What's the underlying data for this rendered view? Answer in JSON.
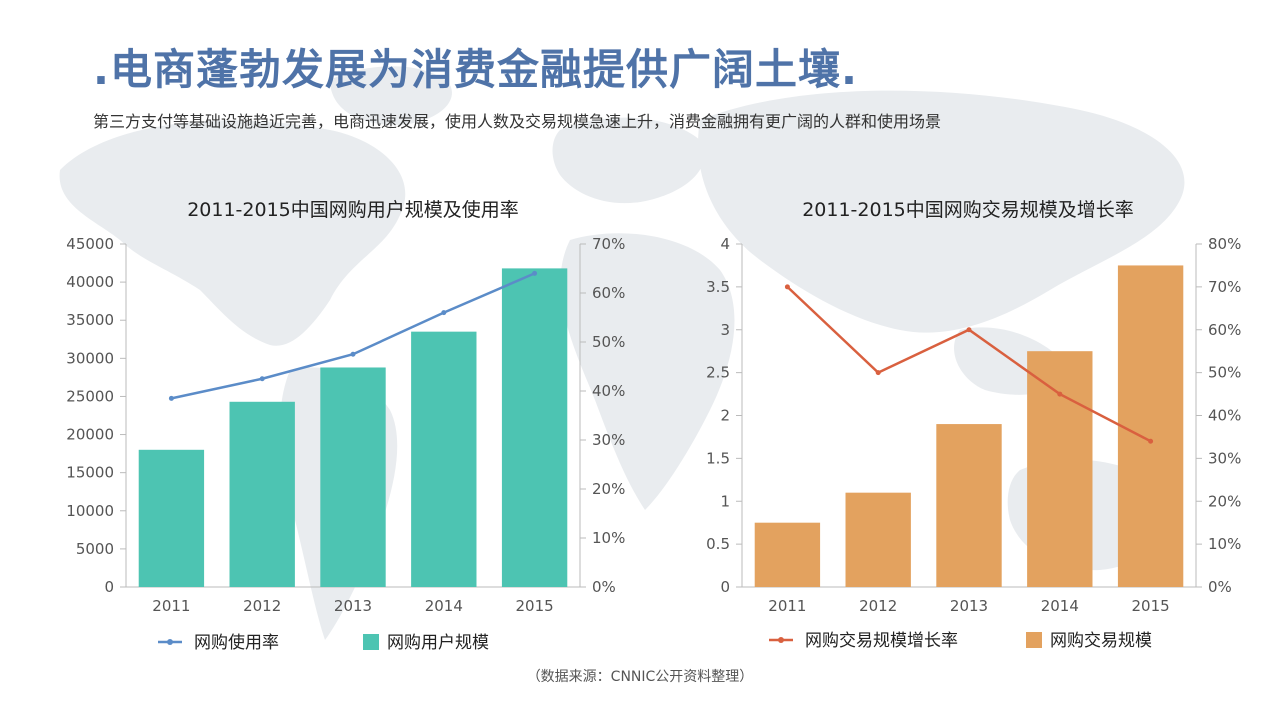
{
  "page": {
    "title": ".电商蓬勃发展为消费金融提供广阔土壤.",
    "subtitle": "第三方支付等基础设施趋近完善，电商迅速发展，使用人数及交易规模急速上升，消费金融拥有更广阔的人群和使用场景",
    "source": "（数据来源：CNNIC公开资料整理）"
  },
  "colors": {
    "title": "#4f73a8",
    "teal": "#4dc4b2",
    "blue_line": "#5b8cc8",
    "orange": "#e3a25f",
    "red_line": "#d9603f"
  },
  "chart_data": [
    {
      "type": "bar",
      "title": "2011-2015中国网购用户规模及使用率",
      "categories": [
        "2011",
        "2012",
        "2013",
        "2014",
        "2015"
      ],
      "series": [
        {
          "name": "网购用户规模",
          "type": "bar",
          "axis": "left",
          "values": [
            18000,
            24300,
            28800,
            33500,
            41800
          ]
        },
        {
          "name": "网购使用率",
          "type": "line",
          "axis": "right",
          "values": [
            38.5,
            42.5,
            47.5,
            56,
            64
          ]
        }
      ],
      "ylim": [
        0,
        45000
      ],
      "y_ticks": [
        "0",
        "5000",
        "10000",
        "15000",
        "20000",
        "25000",
        "30000",
        "35000",
        "40000",
        "45000"
      ],
      "y2lim": [
        0,
        70
      ],
      "y2_ticks": [
        "0%",
        "10%",
        "20%",
        "30%",
        "40%",
        "50%",
        "60%",
        "70%"
      ],
      "legend_position": "bottom",
      "legend": [
        "网购使用率",
        "网购用户规模"
      ]
    },
    {
      "type": "bar",
      "title": "2011-2015中国网购交易规模及增长率",
      "categories": [
        "2011",
        "2012",
        "2013",
        "2014",
        "2015"
      ],
      "series": [
        {
          "name": "网购交易规模",
          "type": "bar",
          "axis": "left",
          "values": [
            0.75,
            1.1,
            1.9,
            2.75,
            3.75
          ]
        },
        {
          "name": "网购交易规模增长率",
          "type": "line",
          "axis": "right",
          "values": [
            70,
            50,
            60,
            45,
            34
          ]
        }
      ],
      "ylim": [
        0,
        4
      ],
      "y_ticks": [
        "0",
        "0.5",
        "1",
        "1.5",
        "2",
        "2.5",
        "3",
        "3.5",
        "4"
      ],
      "y2lim": [
        0,
        80
      ],
      "y2_ticks": [
        "0%",
        "10%",
        "20%",
        "30%",
        "40%",
        "50%",
        "60%",
        "70%",
        "80%"
      ],
      "legend_position": "bottom",
      "legend": [
        "网购交易规模增长率",
        "网购交易规模"
      ]
    }
  ]
}
